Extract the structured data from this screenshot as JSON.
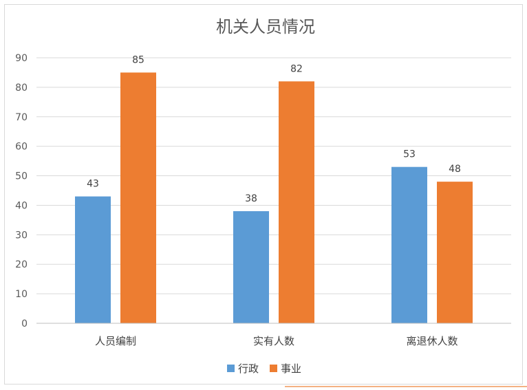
{
  "chart_data": {
    "type": "bar",
    "title": "机关人员情况",
    "xlabel": "",
    "ylabel": "",
    "categories": [
      "人员编制",
      "实有人数",
      "离退休人数"
    ],
    "series": [
      {
        "name": "行政",
        "values": [
          43,
          38,
          53
        ],
        "color": "#5b9bd5"
      },
      {
        "name": "事业",
        "values": [
          85,
          82,
          48
        ],
        "color": "#ed7d31"
      }
    ],
    "ylim": [
      0,
      90
    ],
    "yticks": [
      0,
      10,
      20,
      30,
      40,
      50,
      60,
      70,
      80,
      90
    ],
    "grid": true,
    "data_labels": true,
    "legend_position": "bottom"
  }
}
